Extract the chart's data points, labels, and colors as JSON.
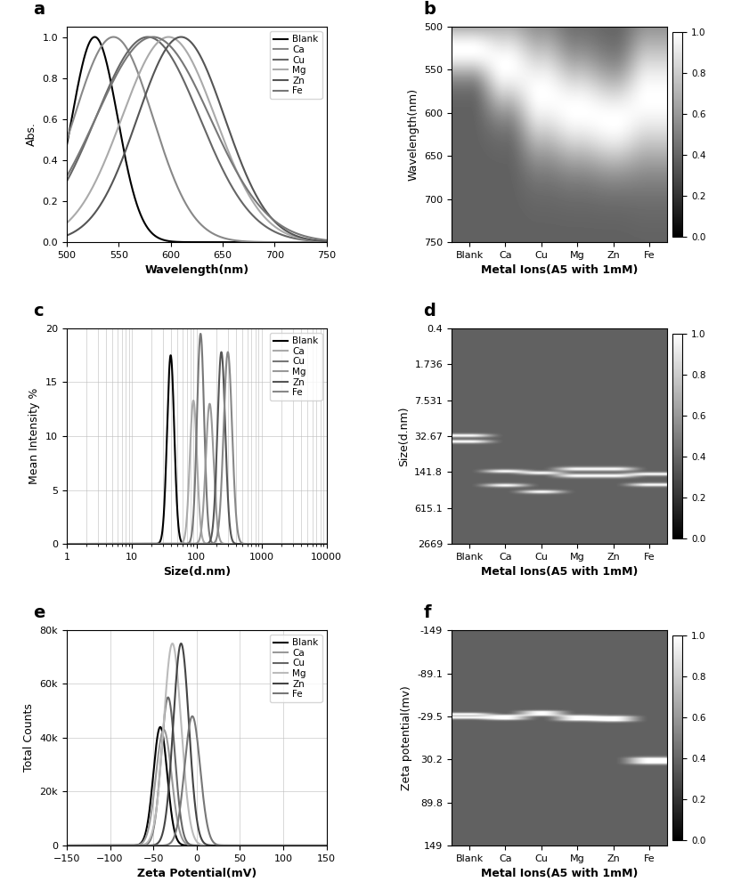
{
  "panel_labels": [
    "a",
    "b",
    "c",
    "d",
    "e",
    "f"
  ],
  "legend_labels": [
    "Blank",
    "Ca",
    "Cu",
    "Mg",
    "Zn",
    "Fe"
  ],
  "line_colors_a": [
    "#000000",
    "#888888",
    "#666666",
    "#aaaaaa",
    "#555555",
    "#777777"
  ],
  "line_colors_c": [
    "#000000",
    "#aaaaaa",
    "#777777",
    "#999999",
    "#555555",
    "#888888"
  ],
  "line_colors_e": [
    "#000000",
    "#999999",
    "#666666",
    "#bbbbbb",
    "#444444",
    "#777777"
  ],
  "panel_a": {
    "xlabel": "Wavelength(nm)",
    "ylabel": "Abs.",
    "xlim": [
      500,
      750
    ],
    "ylim": [
      0.0,
      1.05
    ],
    "yticks": [
      0.0,
      0.2,
      0.4,
      0.6,
      0.8,
      1.0
    ],
    "xticks": [
      500,
      550,
      600,
      650,
      700,
      750
    ],
    "peaks": [
      527,
      545,
      578,
      598,
      610,
      583
    ],
    "widths": [
      22,
      38,
      50,
      45,
      42,
      55
    ]
  },
  "panel_b": {
    "xlabel": "Metal Ions(A5 with 1mM)",
    "ylabel": "Wavelength(nm)",
    "xtick_labels": [
      "Blank",
      "Ca",
      "Cu",
      "Mg",
      "Zn",
      "Fe"
    ],
    "yticks": [
      500,
      550,
      600,
      650,
      700,
      750
    ],
    "colorbar_ticks": [
      0,
      0.2,
      0.4,
      0.6,
      0.8,
      1.0
    ],
    "bg_level": 0.38
  },
  "panel_c": {
    "xlabel": "Size(d.nm)",
    "ylabel": "Mean Intensity %",
    "xlim": [
      1,
      10000
    ],
    "ylim": [
      0,
      20
    ],
    "yticks": [
      0,
      5,
      10,
      15,
      20
    ],
    "peaks_log": [
      1.6,
      1.95,
      2.06,
      2.2,
      2.38,
      2.48
    ],
    "widths_log": [
      0.055,
      0.055,
      0.055,
      0.06,
      0.06,
      0.065
    ],
    "heights": [
      17.5,
      13.3,
      19.5,
      13.0,
      17.8,
      17.8
    ]
  },
  "panel_d": {
    "xlabel": "Metal Ions(A5 with 1mM)",
    "ylabel": "Size(d.nm)",
    "xtick_labels": [
      "Blank",
      "Ca",
      "Cu",
      "Mg",
      "Zn",
      "Fe"
    ],
    "ytick_labels": [
      "0.4",
      "1.736",
      "7.531",
      "32.67",
      "141.8",
      "615.1",
      "2669"
    ],
    "ytick_values_log": [
      -0.3979,
      0.2394,
      0.8768,
      1.514,
      2.1517,
      2.7889,
      3.4261
    ],
    "colorbar_ticks": [
      0,
      0.2,
      0.4,
      0.6,
      0.8,
      1.0
    ],
    "bg_level": 0.38,
    "size_peaks_log": [
      1.515,
      2.115,
      2.215,
      2.115,
      2.115,
      2.215
    ],
    "size_peaks2_log": [
      1.615,
      2.265,
      2.315,
      2.2,
      2.2,
      2.265
    ],
    "size_widths_log": [
      0.028,
      0.028,
      0.028,
      0.03,
      0.03,
      0.028
    ]
  },
  "panel_e": {
    "xlabel": "Zeta Potential(mV)",
    "ylabel": "Total Counts",
    "xlim": [
      -150,
      150
    ],
    "ylim": [
      0,
      80000
    ],
    "yticks": [
      0,
      20000,
      40000,
      60000,
      80000
    ],
    "ytick_labels": [
      "0",
      "20k",
      "40k",
      "60k",
      "80k"
    ],
    "xticks": [
      -150,
      -100,
      -50,
      0,
      50,
      100,
      150
    ],
    "peaks": [
      -42,
      -38,
      -33,
      -28,
      -18,
      -5
    ],
    "widths": [
      8,
      9,
      8,
      10,
      9,
      9
    ],
    "heights": [
      44000,
      43000,
      55000,
      75000,
      75000,
      48000
    ]
  },
  "panel_f": {
    "xlabel": "Metal Ions(A5 with 1mM)",
    "ylabel": "Zeta potential(mv)",
    "xtick_labels": [
      "Blank",
      "Ca",
      "Cu",
      "Mg",
      "Zn",
      "Fe"
    ],
    "ytick_labels": [
      "-149",
      "-89.1",
      "-29.5",
      "30.2",
      "89.8",
      "149"
    ],
    "ytick_values": [
      -149,
      -89.1,
      -29.5,
      30.2,
      89.8,
      149
    ],
    "colorbar_ticks": [
      0,
      0.2,
      0.4,
      0.6,
      0.8,
      1.0
    ],
    "bg_level": 0.38,
    "zeta_peaks": [
      -32.0,
      -29.0,
      -35.0,
      -28.0,
      -27.0,
      32.0
    ],
    "zeta_peaks2": [
      -28.0,
      -26.0,
      -32.0,
      -25.0,
      -24.0,
      36.0
    ],
    "zeta_widths": [
      1.8,
      1.8,
      1.8,
      2.0,
      2.0,
      2.5
    ]
  },
  "fig_bg": "#ffffff"
}
